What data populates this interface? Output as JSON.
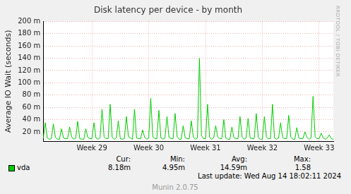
{
  "chart_data": {
    "type": "line",
    "title": "Disk latency per device - by month",
    "y_label": "Average IO Wait (seconds)",
    "categories": [
      null,
      null,
      null,
      null,
      null,
      null,
      null,
      null,
      null,
      null,
      null,
      null,
      null,
      null,
      null,
      null,
      null,
      null,
      null,
      null,
      null,
      null,
      null,
      null,
      "Week 29",
      null,
      null,
      null,
      null,
      null,
      null,
      null,
      null,
      null,
      null,
      null,
      null,
      null,
      null,
      null,
      null,
      null,
      null,
      null,
      null,
      null,
      null,
      null,
      null,
      null,
      null,
      null,
      "Week 30",
      null,
      null,
      null,
      null,
      null,
      null,
      null,
      null,
      null,
      null,
      null,
      null,
      null,
      null,
      null,
      null,
      null,
      null,
      null,
      null,
      null,
      null,
      null,
      null,
      null,
      null,
      null,
      "Week 31",
      null,
      null,
      null,
      null,
      null,
      null,
      null,
      null,
      null,
      null,
      null,
      null,
      null,
      null,
      null,
      null,
      null,
      null,
      null,
      null,
      null,
      null,
      null,
      null,
      null,
      null,
      null,
      "Week 32",
      null,
      null,
      null,
      null,
      null,
      null,
      null,
      null,
      null,
      null,
      null,
      null,
      null,
      null,
      null,
      null,
      null,
      null,
      null,
      null,
      null,
      null,
      null,
      null,
      null,
      null,
      null,
      "Week 33",
      null,
      null,
      null,
      null,
      null,
      null,
      null
    ],
    "series": [
      {
        "name": "vda",
        "color": "#00cc00",
        "values": [
          0.009,
          0.035,
          0.01,
          0.008,
          0.009,
          0.033,
          0.011,
          0.008,
          0.008,
          0.025,
          0.01,
          0.009,
          0.009,
          0.028,
          0.012,
          0.008,
          0.01,
          0.037,
          0.009,
          0.008,
          0.008,
          0.025,
          0.011,
          0.009,
          0.009,
          0.035,
          0.01,
          0.008,
          0.01,
          0.057,
          0.012,
          0.009,
          0.009,
          0.065,
          0.011,
          0.008,
          0.01,
          0.038,
          0.009,
          0.008,
          0.009,
          0.045,
          0.012,
          0.01,
          0.008,
          0.057,
          0.01,
          0.009,
          0.009,
          0.023,
          0.011,
          0.008,
          0.01,
          0.075,
          0.012,
          0.009,
          0.009,
          0.055,
          0.01,
          0.008,
          0.01,
          0.045,
          0.011,
          0.009,
          0.009,
          0.05,
          0.012,
          0.008,
          0.008,
          0.03,
          0.01,
          0.009,
          0.009,
          0.038,
          0.011,
          0.008,
          0.01,
          0.14,
          0.014,
          0.009,
          0.009,
          0.065,
          0.011,
          0.008,
          0.01,
          0.03,
          0.012,
          0.009,
          0.009,
          0.04,
          0.01,
          0.008,
          0.008,
          0.028,
          0.011,
          0.009,
          0.009,
          0.045,
          0.012,
          0.008,
          0.01,
          0.042,
          0.01,
          0.009,
          0.009,
          0.05,
          0.011,
          0.008,
          0.008,
          0.045,
          0.012,
          0.009,
          0.009,
          0.065,
          0.01,
          0.008,
          0.01,
          0.035,
          0.011,
          0.009,
          0.009,
          0.047,
          0.012,
          0.008,
          0.008,
          0.027,
          0.01,
          0.009,
          0.009,
          0.02,
          0.011,
          0.008,
          0.01,
          0.078,
          0.012,
          0.009,
          0.009,
          0.018,
          0.01,
          0.008,
          0.01,
          0.015,
          0.009,
          0.00818
        ]
      }
    ],
    "ylim": [
      0.005,
      0.2
    ],
    "yticks": [
      {
        "value": 0.02,
        "label": "20 m"
      },
      {
        "value": 0.04,
        "label": "40 m"
      },
      {
        "value": 0.06,
        "label": "60 m"
      },
      {
        "value": 0.08,
        "label": "80 m"
      },
      {
        "value": 0.1,
        "label": "100 m"
      },
      {
        "value": 0.12,
        "label": "120 m"
      },
      {
        "value": 0.14,
        "label": "140 m"
      },
      {
        "value": 0.16,
        "label": "160 m"
      },
      {
        "value": 0.18,
        "label": "180 m"
      },
      {
        "value": 0.2,
        "label": "200 m"
      }
    ],
    "grid": true,
    "stats": {
      "headers": [
        "Cur:",
        "Min:",
        "Avg:",
        "Max:"
      ],
      "values": [
        "8.18m",
        "4.95m",
        "14.59m",
        "1.58"
      ]
    },
    "last_update": "Last update: Wed Aug 14 18:02:11 2024",
    "footer": "Munin 2.0.75",
    "side_text": "RRDTOOL / TOBI OETIKER"
  }
}
